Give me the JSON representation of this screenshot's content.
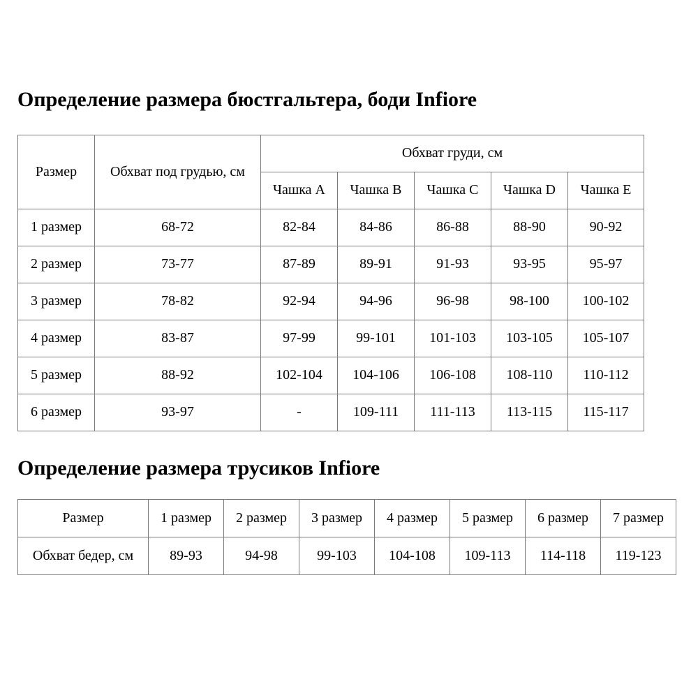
{
  "page": {
    "bra_title": "Определение размера бюстгальтера, боди Infiore",
    "panty_title": "Определение размера трусиков Infiore"
  },
  "bra_table": {
    "col_size": "Размер",
    "col_underbust": "Обхват под грудью, см",
    "col_bust_group": "Обхват груди, см",
    "cup_headers": [
      "Чашка A",
      "Чашка B",
      "Чашка C",
      "Чашка D",
      "Чашка E"
    ],
    "rows": [
      {
        "size": "1 размер",
        "underbust": "68-72",
        "cups": [
          "82-84",
          "84-86",
          "86-88",
          "88-90",
          "90-92"
        ]
      },
      {
        "size": "2 размер",
        "underbust": "73-77",
        "cups": [
          "87-89",
          "89-91",
          "91-93",
          "93-95",
          "95-97"
        ]
      },
      {
        "size": "3 размер",
        "underbust": "78-82",
        "cups": [
          "92-94",
          "94-96",
          "96-98",
          "98-100",
          "100-102"
        ]
      },
      {
        "size": "4 размер",
        "underbust": "83-87",
        "cups": [
          "97-99",
          "99-101",
          "101-103",
          "103-105",
          "105-107"
        ]
      },
      {
        "size": "5 размер",
        "underbust": "88-92",
        "cups": [
          "102-104",
          "104-106",
          "106-108",
          "108-110",
          "110-112"
        ]
      },
      {
        "size": "6 размер",
        "underbust": "93-97",
        "cups": [
          "-",
          "109-111",
          "111-113",
          "113-115",
          "115-117"
        ]
      }
    ]
  },
  "panty_table": {
    "col_size": "Размер",
    "size_headers": [
      "1 размер",
      "2 размер",
      "3 размер",
      "4 размер",
      "5 размер",
      "6 размер",
      "7 размер"
    ],
    "row_label": "Обхват бедер, см",
    "values": [
      "89-93",
      "94-98",
      "99-103",
      "104-108",
      "109-113",
      "114-118",
      "119-123"
    ]
  }
}
